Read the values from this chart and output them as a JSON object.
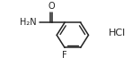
{
  "background_color": "#ffffff",
  "figsize": [
    1.47,
    0.74
  ],
  "dpi": 100,
  "bond_color": "#222222",
  "bond_lw": 1.1,
  "text_color": "#222222",
  "hcl_text": "HCl",
  "h2n_text": "H₂N",
  "o_text": "O",
  "f_text": "F",
  "font_size": 7.0
}
